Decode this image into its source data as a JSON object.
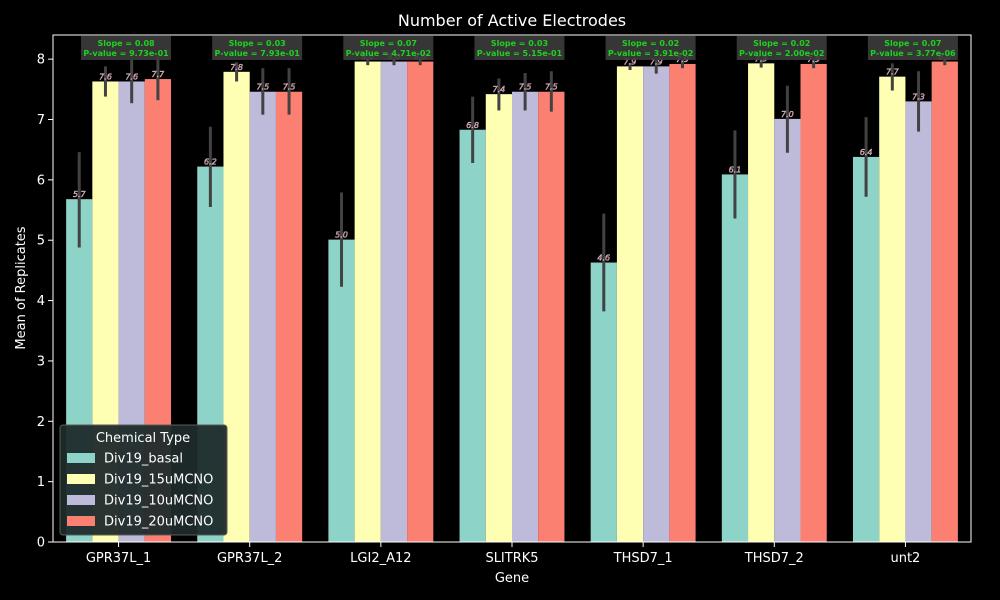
{
  "chart_data": {
    "type": "bar",
    "title": "Number of Active Electrodes",
    "xlabel": "Gene",
    "ylabel": "Mean of Replicates",
    "ylim": [
      0,
      8.4
    ],
    "yticks": [
      0,
      1,
      2,
      3,
      4,
      5,
      6,
      7,
      8
    ],
    "grid": false,
    "legend": {
      "title": "Chemical Type",
      "placement": "lower-left"
    },
    "categories": [
      "GPR37L_1",
      "GPR37L_2",
      "LGI2_A12",
      "SLITRK5",
      "THSD7_1",
      "THSD7_2",
      "unt2"
    ],
    "series": [
      {
        "name": "Div19_basal",
        "color": "#8dd3c7",
        "values": [
          5.68,
          6.22,
          5.01,
          6.83,
          4.63,
          6.09,
          6.38
        ],
        "labels": [
          "5.7",
          "6.2",
          "5.0",
          "6.8",
          "4.6",
          "6.1",
          "6.4"
        ],
        "ci_low": [
          4.88,
          5.55,
          4.23,
          6.28,
          3.82,
          5.36,
          5.72
        ],
        "ci_high": [
          6.46,
          6.88,
          5.79,
          7.38,
          5.44,
          6.82,
          7.04
        ]
      },
      {
        "name": "Div19_15uMCNO",
        "color": "#ffffb3",
        "values": [
          7.63,
          7.79,
          7.96,
          7.42,
          7.88,
          7.93,
          7.71
        ],
        "labels": [
          "7.6",
          "7.8",
          "8.0",
          "7.4",
          "7.9",
          "7.9",
          "7.7"
        ],
        "ci_low": [
          7.38,
          7.63,
          7.9,
          7.15,
          7.82,
          7.86,
          7.48
        ],
        "ci_high": [
          7.88,
          7.95,
          8.02,
          7.68,
          7.94,
          8.0,
          7.93
        ]
      },
      {
        "name": "Div19_10uMCNO",
        "color": "#bebada",
        "values": [
          7.63,
          7.46,
          7.96,
          7.46,
          7.88,
          7.01,
          7.3
        ],
        "labels": [
          "7.6",
          "7.5",
          "8.0",
          "7.5",
          "7.9",
          "7.0",
          "7.3"
        ],
        "ci_low": [
          7.27,
          7.08,
          7.9,
          7.15,
          7.76,
          6.45,
          6.8
        ],
        "ci_high": [
          8.0,
          7.85,
          8.02,
          7.77,
          8.0,
          7.56,
          7.8
        ]
      },
      {
        "name": "Div19_20uMCNO",
        "color": "#fb8072",
        "values": [
          7.67,
          7.46,
          7.96,
          7.46,
          7.92,
          7.92,
          7.96
        ],
        "labels": [
          "7.7",
          "7.5",
          "8.0",
          "7.5",
          "7.9",
          "7.9",
          "8.0"
        ],
        "ci_low": [
          7.32,
          7.08,
          7.9,
          7.13,
          7.85,
          7.85,
          7.9
        ],
        "ci_high": [
          8.05,
          7.85,
          8.02,
          7.8,
          8.0,
          8.0,
          8.02
        ]
      }
    ],
    "annotations": [
      {
        "line1": "Slope = 0.08",
        "line2": "P-value = 9.73e-01"
      },
      {
        "line1": "Slope = 0.03",
        "line2": "P-value = 7.93e-01"
      },
      {
        "line1": "Slope = 0.07",
        "line2": "P-value = 4.71e-02"
      },
      {
        "line1": "Slope = 0.03",
        "line2": "P-value = 5.15e-01"
      },
      {
        "line1": "Slope = 0.02",
        "line2": "P-value = 3.91e-02"
      },
      {
        "line1": "Slope = 0.02",
        "line2": "P-value = 2.00e-02"
      },
      {
        "line1": "Slope = 0.07",
        "line2": "P-value = 3.77e-06"
      }
    ]
  },
  "colors": {
    "background": "#000000",
    "axes": "#ffffff",
    "error_bar": "#424242",
    "stat_text": "#1fd11f",
    "stat_box": "#3c3c3c",
    "bar_label": "#b1345f",
    "legend_bg": "#1f2a2b"
  }
}
